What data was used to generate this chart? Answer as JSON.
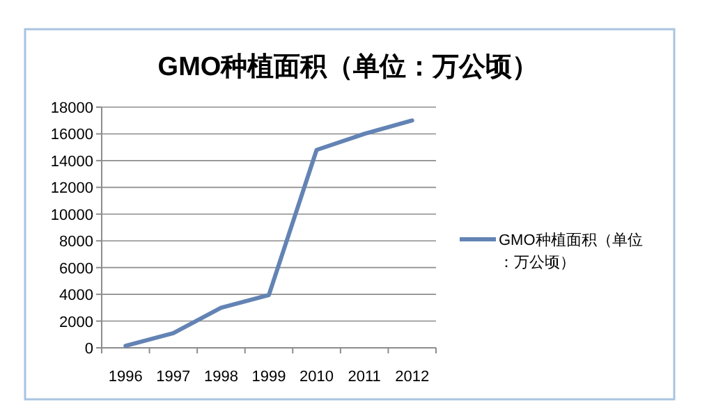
{
  "chart_data": {
    "type": "line",
    "title": "GMO种植面积（单位：万公顷）",
    "categories": [
      "1996",
      "1997",
      "1998",
      "1999",
      "2010",
      "2011",
      "2012"
    ],
    "series": [
      {
        "name": "GMO种植面积（单位：万公顷）",
        "color": "#6383b4",
        "values": [
          150,
          1100,
          3000,
          3950,
          14800,
          16000,
          17000
        ]
      }
    ],
    "ylim": [
      0,
      18000
    ],
    "yticks": [
      0,
      2000,
      4000,
      6000,
      8000,
      10000,
      12000,
      14000,
      16000,
      18000
    ],
    "grid": "y",
    "legend": "right",
    "marker": "none",
    "line_style": "solid"
  }
}
